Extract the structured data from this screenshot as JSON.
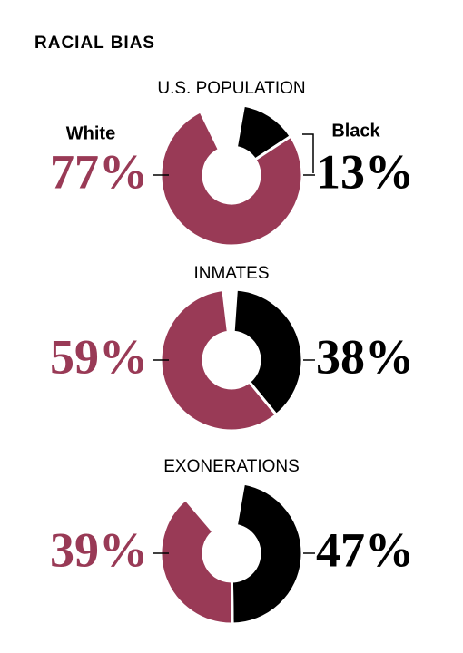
{
  "title": "RACIAL BIAS",
  "chart_data": [
    {
      "type": "donut",
      "title": "U.S. POPULATION",
      "categories": [
        "White",
        "Black"
      ],
      "values": [
        77,
        13
      ],
      "value_labels": [
        "77%",
        "13%"
      ],
      "colors": [
        "#993a56",
        "#000000"
      ]
    },
    {
      "type": "donut",
      "title": "INMATES",
      "values": [
        59,
        38
      ],
      "value_labels": [
        "59%",
        "38%"
      ],
      "colors": [
        "#993a56",
        "#000000"
      ]
    },
    {
      "type": "donut",
      "title": "EXONERATIONS",
      "values": [
        39,
        47
      ],
      "value_labels": [
        "39%",
        "47%"
      ],
      "colors": [
        "#993a56",
        "#000000"
      ]
    }
  ]
}
